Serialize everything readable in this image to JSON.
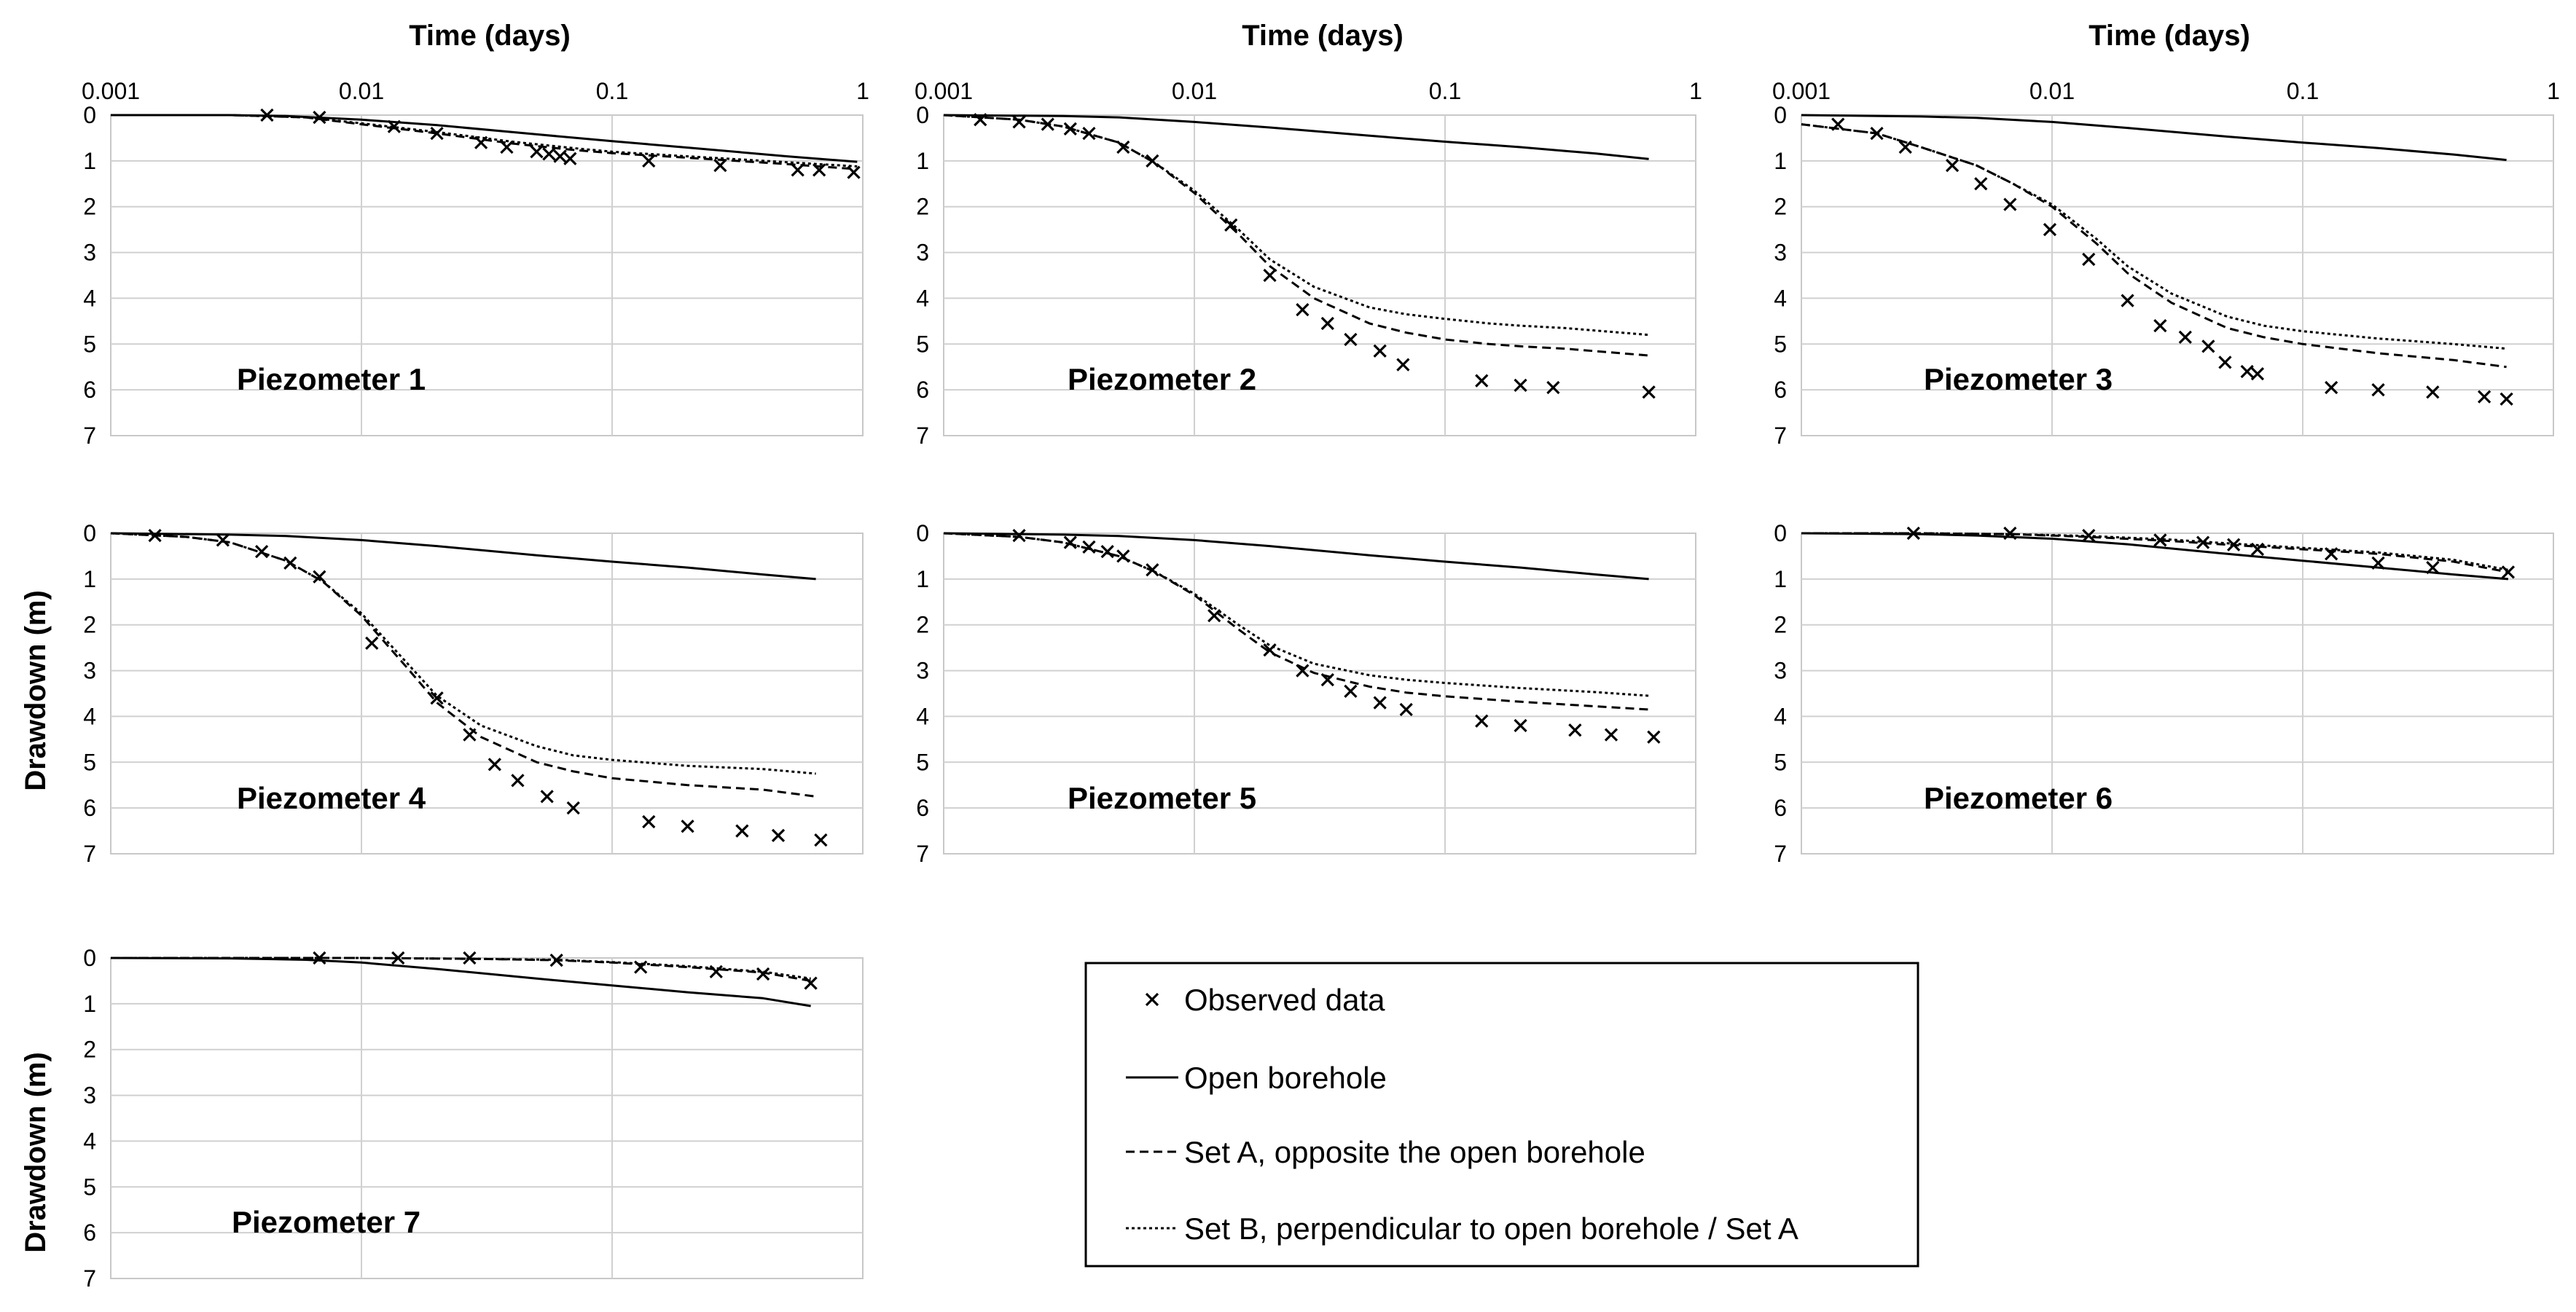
{
  "chart_data": {
    "type": "scatter",
    "figure_layout": "7 small-multiple panels (3 rows x 3 columns, bottom-right slot holds legend)",
    "x_scale": "log",
    "x_axis_title": "Time (days)",
    "x_tick_labels": [
      "0.001",
      "0.01",
      "0.1",
      "1"
    ],
    "xlim": [
      0.001,
      1
    ],
    "y_axis_title": "Drawdown (m)",
    "y_tick_labels": [
      "0",
      "1",
      "2",
      "3",
      "4",
      "5",
      "6",
      "7"
    ],
    "ylim": [
      0,
      7
    ],
    "y_inverted": true,
    "grid": true,
    "legend": {
      "placement": "bottom-right",
      "entries": [
        {
          "label": "Observed data",
          "marker": "x"
        },
        {
          "label": "Open borehole",
          "line": "solid"
        },
        {
          "label": "Set A, opposite the open borehole",
          "line": "dashed"
        },
        {
          "label": "Set B, perpendicular to open borehole / Set A",
          "line": "dotted"
        }
      ]
    },
    "panels": [
      {
        "title": "Piezometer 1",
        "observed": {
          "x": [
            0.0042,
            0.0068,
            0.0135,
            0.02,
            0.03,
            0.038,
            0.05,
            0.056,
            0.062,
            0.068,
            0.14,
            0.27,
            0.55,
            0.67,
            0.92
          ],
          "y": [
            0.0,
            0.05,
            0.25,
            0.4,
            0.6,
            0.7,
            0.8,
            0.85,
            0.9,
            0.95,
            1.0,
            1.1,
            1.2,
            1.2,
            1.25
          ]
        },
        "open_borehole": {
          "x": [
            0.001,
            0.003,
            0.005,
            0.01,
            0.02,
            0.05,
            0.1,
            0.2,
            0.5,
            0.95
          ],
          "y": [
            0.0,
            0.0,
            0.02,
            0.1,
            0.22,
            0.42,
            0.57,
            0.71,
            0.9,
            1.02
          ]
        },
        "set_a": {
          "x": [
            0.001,
            0.003,
            0.006,
            0.01,
            0.02,
            0.04,
            0.07,
            0.1,
            0.2,
            0.5,
            0.95
          ],
          "y": [
            0.0,
            0.0,
            0.05,
            0.2,
            0.4,
            0.62,
            0.76,
            0.83,
            0.93,
            1.07,
            1.18
          ]
        },
        "set_b": {
          "x": [
            0.001,
            0.003,
            0.006,
            0.01,
            0.02,
            0.04,
            0.07,
            0.1,
            0.2,
            0.5,
            0.95
          ],
          "y": [
            0.0,
            0.0,
            0.05,
            0.18,
            0.37,
            0.58,
            0.72,
            0.8,
            0.9,
            1.03,
            1.12
          ]
        }
      },
      {
        "title": "Piezometer 2",
        "observed": {
          "x": [
            0.0014,
            0.002,
            0.0026,
            0.0032,
            0.0038,
            0.0052,
            0.0068,
            0.014,
            0.02,
            0.027,
            0.034,
            0.042,
            0.055,
            0.068,
            0.14,
            0.2,
            0.27,
            0.65
          ],
          "y": [
            0.1,
            0.15,
            0.2,
            0.3,
            0.4,
            0.7,
            1.0,
            2.4,
            3.5,
            4.25,
            4.55,
            4.9,
            5.15,
            5.45,
            5.8,
            5.9,
            5.95,
            6.05
          ]
        },
        "open_borehole": {
          "x": [
            0.001,
            0.003,
            0.005,
            0.01,
            0.02,
            0.05,
            0.1,
            0.2,
            0.4,
            0.65
          ],
          "y": [
            0.0,
            0.02,
            0.05,
            0.15,
            0.27,
            0.45,
            0.58,
            0.7,
            0.84,
            0.96
          ]
        },
        "set_a": {
          "x": [
            0.001,
            0.002,
            0.003,
            0.005,
            0.007,
            0.01,
            0.015,
            0.02,
            0.03,
            0.05,
            0.07,
            0.1,
            0.15,
            0.2,
            0.3,
            0.65
          ],
          "y": [
            0.0,
            0.1,
            0.25,
            0.6,
            1.05,
            1.7,
            2.6,
            3.3,
            4.0,
            4.55,
            4.75,
            4.9,
            5.0,
            5.05,
            5.1,
            5.25
          ]
        },
        "set_b": {
          "x": [
            0.001,
            0.002,
            0.003,
            0.005,
            0.007,
            0.01,
            0.015,
            0.02,
            0.03,
            0.05,
            0.07,
            0.1,
            0.15,
            0.2,
            0.3,
            0.65
          ],
          "y": [
            0.0,
            0.1,
            0.25,
            0.6,
            1.05,
            1.65,
            2.5,
            3.15,
            3.75,
            4.2,
            4.35,
            4.45,
            4.55,
            4.6,
            4.65,
            4.8
          ]
        }
      },
      {
        "title": "Piezometer 3",
        "observed": {
          "x": [
            0.0014,
            0.002,
            0.0026,
            0.004,
            0.0052,
            0.0068,
            0.0098,
            0.014,
            0.02,
            0.027,
            0.034,
            0.042,
            0.049,
            0.06,
            0.066,
            0.13,
            0.2,
            0.33,
            0.53,
            0.65
          ],
          "y": [
            0.2,
            0.4,
            0.7,
            1.1,
            1.5,
            1.95,
            2.5,
            3.15,
            4.05,
            4.6,
            4.85,
            5.05,
            5.4,
            5.6,
            5.65,
            5.95,
            6.0,
            6.05,
            6.15,
            6.2
          ]
        },
        "open_borehole": {
          "x": [
            0.001,
            0.003,
            0.005,
            0.01,
            0.02,
            0.05,
            0.1,
            0.2,
            0.4,
            0.65
          ],
          "y": [
            0.0,
            0.03,
            0.06,
            0.15,
            0.28,
            0.47,
            0.6,
            0.72,
            0.86,
            0.98
          ]
        },
        "set_a": {
          "x": [
            0.001,
            0.002,
            0.003,
            0.005,
            0.007,
            0.01,
            0.015,
            0.02,
            0.03,
            0.05,
            0.07,
            0.1,
            0.2,
            0.4,
            0.65
          ],
          "y": [
            0.2,
            0.4,
            0.7,
            1.1,
            1.5,
            2.0,
            2.8,
            3.45,
            4.1,
            4.65,
            4.85,
            5.0,
            5.2,
            5.35,
            5.5
          ]
        },
        "set_b": {
          "x": [
            0.001,
            0.002,
            0.003,
            0.005,
            0.007,
            0.01,
            0.015,
            0.02,
            0.03,
            0.05,
            0.07,
            0.1,
            0.2,
            0.4,
            0.65
          ],
          "y": [
            0.2,
            0.4,
            0.7,
            1.1,
            1.5,
            1.95,
            2.7,
            3.3,
            3.9,
            4.4,
            4.6,
            4.72,
            4.88,
            5.0,
            5.1
          ]
        }
      },
      {
        "title": "Piezometer 4",
        "observed": {
          "x": [
            0.0015,
            0.0028,
            0.004,
            0.0052,
            0.0068,
            0.011,
            0.02,
            0.027,
            0.034,
            0.042,
            0.055,
            0.07,
            0.14,
            0.2,
            0.33,
            0.46,
            0.68
          ],
          "y": [
            0.05,
            0.15,
            0.4,
            0.65,
            0.95,
            2.4,
            3.6,
            4.4,
            5.05,
            5.4,
            5.75,
            6.0,
            6.3,
            6.4,
            6.5,
            6.6,
            6.7
          ]
        },
        "open_borehole": {
          "x": [
            0.001,
            0.003,
            0.005,
            0.01,
            0.02,
            0.05,
            0.1,
            0.2,
            0.4,
            0.65
          ],
          "y": [
            0.0,
            0.03,
            0.06,
            0.15,
            0.28,
            0.48,
            0.62,
            0.75,
            0.9,
            1.0
          ]
        },
        "set_a": {
          "x": [
            0.001,
            0.002,
            0.003,
            0.005,
            0.007,
            0.01,
            0.015,
            0.02,
            0.03,
            0.05,
            0.07,
            0.1,
            0.2,
            0.4,
            0.65
          ],
          "y": [
            0.0,
            0.08,
            0.2,
            0.6,
            1.05,
            1.8,
            2.9,
            3.7,
            4.45,
            5.0,
            5.2,
            5.35,
            5.5,
            5.6,
            5.75
          ]
        },
        "set_b": {
          "x": [
            0.001,
            0.002,
            0.003,
            0.005,
            0.007,
            0.01,
            0.015,
            0.02,
            0.03,
            0.05,
            0.07,
            0.1,
            0.2,
            0.4,
            0.65
          ],
          "y": [
            0.0,
            0.08,
            0.2,
            0.6,
            1.05,
            1.75,
            2.8,
            3.55,
            4.2,
            4.65,
            4.85,
            4.95,
            5.08,
            5.15,
            5.25
          ]
        }
      },
      {
        "title": "Piezometer 5",
        "observed": {
          "x": [
            0.002,
            0.0032,
            0.0038,
            0.0045,
            0.0052,
            0.0068,
            0.012,
            0.02,
            0.027,
            0.034,
            0.042,
            0.055,
            0.07,
            0.14,
            0.2,
            0.33,
            0.46,
            0.68
          ],
          "y": [
            0.05,
            0.2,
            0.3,
            0.4,
            0.5,
            0.8,
            1.8,
            2.55,
            3.0,
            3.2,
            3.45,
            3.7,
            3.85,
            4.1,
            4.2,
            4.3,
            4.4,
            4.45
          ]
        },
        "open_borehole": {
          "x": [
            0.001,
            0.003,
            0.005,
            0.01,
            0.02,
            0.05,
            0.1,
            0.2,
            0.4,
            0.65
          ],
          "y": [
            0.0,
            0.03,
            0.06,
            0.15,
            0.28,
            0.48,
            0.62,
            0.75,
            0.9,
            1.0
          ]
        },
        "set_a": {
          "x": [
            0.001,
            0.002,
            0.003,
            0.005,
            0.007,
            0.01,
            0.015,
            0.02,
            0.03,
            0.05,
            0.07,
            0.1,
            0.2,
            0.4,
            0.65
          ],
          "y": [
            0.0,
            0.08,
            0.2,
            0.5,
            0.85,
            1.35,
            2.1,
            2.6,
            3.05,
            3.35,
            3.48,
            3.56,
            3.68,
            3.78,
            3.85
          ]
        },
        "set_b": {
          "x": [
            0.001,
            0.002,
            0.003,
            0.005,
            0.007,
            0.01,
            0.015,
            0.02,
            0.03,
            0.05,
            0.07,
            0.1,
            0.2,
            0.4,
            0.65
          ],
          "y": [
            0.0,
            0.08,
            0.2,
            0.5,
            0.85,
            1.32,
            2.0,
            2.45,
            2.85,
            3.1,
            3.2,
            3.27,
            3.38,
            3.47,
            3.55
          ]
        }
      },
      {
        "title": "Piezometer 6",
        "observed": {
          "x": [
            0.0028,
            0.0068,
            0.014,
            0.027,
            0.04,
            0.053,
            0.066,
            0.13,
            0.2,
            0.33,
            0.66
          ],
          "y": [
            0.0,
            0.0,
            0.05,
            0.15,
            0.2,
            0.25,
            0.35,
            0.45,
            0.65,
            0.75,
            0.85
          ]
        },
        "open_borehole": {
          "x": [
            0.001,
            0.003,
            0.005,
            0.01,
            0.02,
            0.05,
            0.1,
            0.2,
            0.4,
            0.66
          ],
          "y": [
            0.0,
            0.02,
            0.05,
            0.12,
            0.24,
            0.45,
            0.6,
            0.75,
            0.9,
            1.0
          ]
        },
        "set_a": {
          "x": [
            0.001,
            0.003,
            0.007,
            0.014,
            0.03,
            0.05,
            0.1,
            0.2,
            0.4,
            0.66
          ],
          "y": [
            0.0,
            0.0,
            0.02,
            0.08,
            0.17,
            0.25,
            0.35,
            0.45,
            0.62,
            0.85
          ]
        },
        "set_b": {
          "x": [
            0.001,
            0.003,
            0.007,
            0.014,
            0.03,
            0.05,
            0.1,
            0.2,
            0.4,
            0.66
          ],
          "y": [
            0.0,
            0.0,
            0.02,
            0.06,
            0.14,
            0.22,
            0.32,
            0.42,
            0.58,
            0.8
          ]
        }
      },
      {
        "title": "Piezometer 7",
        "observed": {
          "x": [
            0.0068,
            0.014,
            0.027,
            0.06,
            0.13,
            0.26,
            0.4,
            0.62
          ],
          "y": [
            0.0,
            0.0,
            0.0,
            0.05,
            0.2,
            0.3,
            0.35,
            0.55
          ]
        },
        "open_borehole": {
          "x": [
            0.001,
            0.003,
            0.006,
            0.01,
            0.02,
            0.05,
            0.1,
            0.2,
            0.4,
            0.62
          ],
          "y": [
            0.0,
            0.01,
            0.04,
            0.1,
            0.24,
            0.45,
            0.6,
            0.75,
            0.88,
            1.05
          ]
        },
        "set_a": {
          "x": [
            0.001,
            0.01,
            0.03,
            0.06,
            0.1,
            0.2,
            0.4,
            0.62
          ],
          "y": [
            0.0,
            0.0,
            0.02,
            0.05,
            0.1,
            0.2,
            0.32,
            0.5
          ]
        },
        "set_b": {
          "x": [
            0.001,
            0.01,
            0.03,
            0.06,
            0.1,
            0.2,
            0.4,
            0.62
          ],
          "y": [
            0.0,
            0.0,
            0.02,
            0.04,
            0.09,
            0.18,
            0.3,
            0.45
          ]
        }
      }
    ]
  }
}
